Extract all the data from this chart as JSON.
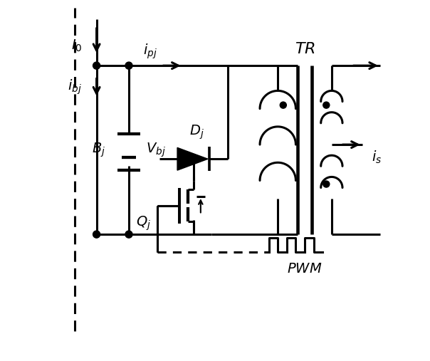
{
  "fig_width": 6.04,
  "fig_height": 5.07,
  "dpi": 100,
  "bg_color": "white",
  "line_color": "black",
  "line_width": 2.2,
  "xlim": [
    0,
    10
  ],
  "ylim": [
    0,
    10
  ]
}
